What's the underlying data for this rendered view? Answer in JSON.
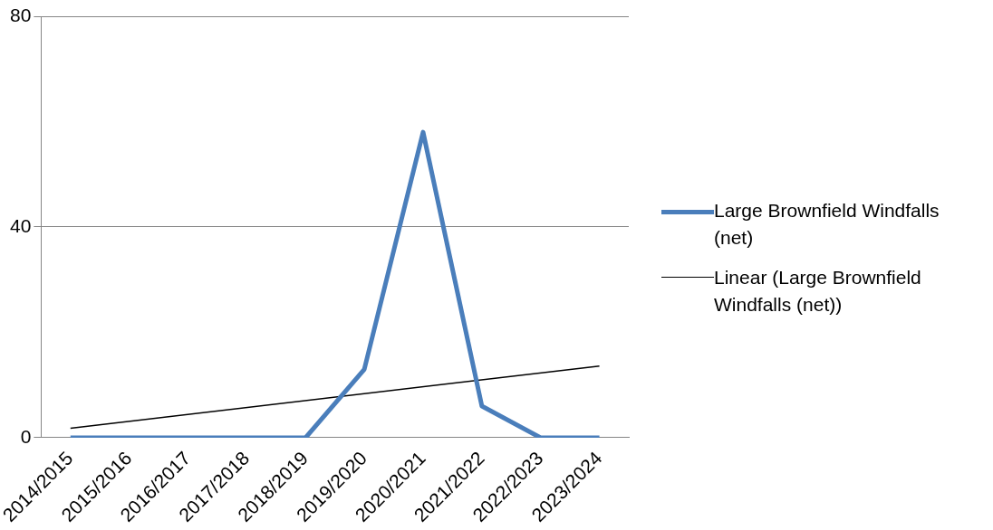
{
  "chart_data": {
    "type": "line",
    "categories": [
      "2014/2015",
      "2015/2016",
      "2016/2017",
      "2017/2018",
      "2018/2019",
      "2019/2020",
      "2020/2021",
      "2021/2022",
      "2022/2023",
      "2023/2024"
    ],
    "series": [
      {
        "name": "Large Brownfield Windfalls (net)",
        "color": "#4a7ebb",
        "values": [
          0,
          0,
          0,
          0,
          0,
          13,
          58,
          6,
          0,
          0
        ]
      },
      {
        "name": "Linear (Large Brownfield Windfalls (net))",
        "color": "#000000",
        "type": "line",
        "x": [
          "2014/2015",
          "2023/2024"
        ],
        "values": [
          1.8,
          13.6
        ]
      }
    ],
    "ylim": [
      0,
      80
    ],
    "yticks": [
      0,
      40,
      80
    ],
    "grid": "y",
    "legend": "right",
    "marker": "none",
    "line_style": "solid"
  }
}
